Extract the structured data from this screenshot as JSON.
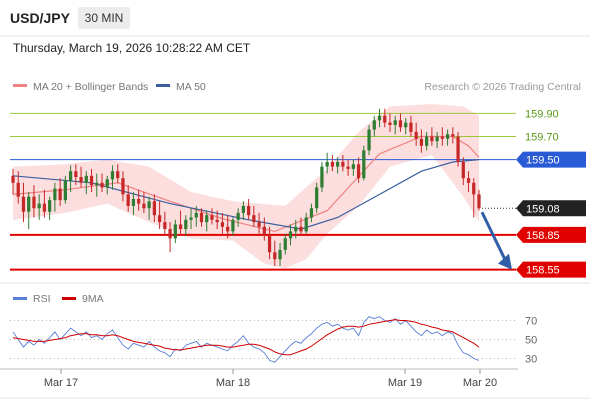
{
  "header": {
    "symbol": "USD/JPY",
    "timeframe": "30 MIN",
    "timestamp": "Thursday, March 19, 2026 10:28:22 AM CET"
  },
  "legend": {
    "ma20": "MA 20 + Bollinger Bands",
    "ma50": "MA 50",
    "rsi": "RSI",
    "rsi_ma": "9MA",
    "credit": "Research © 2026 Trading Central"
  },
  "colors": {
    "bull": "#2e7d32",
    "bear": "#c62828",
    "ma20": "#f08080",
    "ma50": "#3a5f9f",
    "band": "#fbd3d3",
    "support": "#e00000",
    "resistance": "#9bc53d",
    "pivot": "#2a5bd7",
    "arrow": "#2f5da8",
    "rsi": "#5a7fd6",
    "rsi_ma": "#d00000"
  },
  "chart_data": {
    "type": "candlestick",
    "y_range": [
      158.46,
      160.05
    ],
    "x_ticks": [
      "Mar 17",
      "Mar 18",
      "Mar 19",
      "Mar 20"
    ],
    "levels": [
      {
        "value": 159.9,
        "label": "159.90",
        "kind": "resistance"
      },
      {
        "value": 159.7,
        "label": "159.70",
        "kind": "resistance"
      },
      {
        "value": 159.5,
        "label": "159.50",
        "kind": "pivot"
      },
      {
        "value": 158.85,
        "label": "158.85",
        "kind": "support"
      },
      {
        "value": 158.55,
        "label": "158.55",
        "kind": "support"
      }
    ],
    "last_price": {
      "value": 159.08,
      "label": "159.08"
    },
    "projection": {
      "from": 159.08,
      "to": 158.55
    },
    "ohlc": [
      [
        159.36,
        159.42,
        159.2,
        159.3
      ],
      [
        159.3,
        159.4,
        159.12,
        159.18
      ],
      [
        159.18,
        159.3,
        158.96,
        159.05
      ],
      [
        159.05,
        159.22,
        158.9,
        159.18
      ],
      [
        159.18,
        159.28,
        159.0,
        159.08
      ],
      [
        159.08,
        159.2,
        158.98,
        159.12
      ],
      [
        159.12,
        159.24,
        159.0,
        159.05
      ],
      [
        159.05,
        159.18,
        158.98,
        159.15
      ],
      [
        159.15,
        159.3,
        159.05,
        159.25
      ],
      [
        159.25,
        159.34,
        159.1,
        159.15
      ],
      [
        159.15,
        159.36,
        159.12,
        159.32
      ],
      [
        159.32,
        159.45,
        159.22,
        159.4
      ],
      [
        159.4,
        159.46,
        159.28,
        159.35
      ],
      [
        159.35,
        159.44,
        159.26,
        159.3
      ],
      [
        159.3,
        159.4,
        159.2,
        159.36
      ],
      [
        159.36,
        159.42,
        159.22,
        159.28
      ],
      [
        159.28,
        159.38,
        159.18,
        159.3
      ],
      [
        159.3,
        159.38,
        159.22,
        159.26
      ],
      [
        159.26,
        159.36,
        159.2,
        159.33
      ],
      [
        159.33,
        159.45,
        159.24,
        159.4
      ],
      [
        159.4,
        159.46,
        159.3,
        159.34
      ],
      [
        159.34,
        159.4,
        159.14,
        159.2
      ],
      [
        159.2,
        159.28,
        159.05,
        159.1
      ],
      [
        159.1,
        159.22,
        159.02,
        159.16
      ],
      [
        159.16,
        159.24,
        159.06,
        159.12
      ],
      [
        159.12,
        159.22,
        159.04,
        159.08
      ],
      [
        159.08,
        159.18,
        158.98,
        159.14
      ],
      [
        159.14,
        159.2,
        158.96,
        159.02
      ],
      [
        159.02,
        159.14,
        158.9,
        158.96
      ],
      [
        158.96,
        159.05,
        158.84,
        158.9
      ],
      [
        158.9,
        158.96,
        158.7,
        158.82
      ],
      [
        158.82,
        158.98,
        158.78,
        158.94
      ],
      [
        158.94,
        159.06,
        158.86,
        158.9
      ],
      [
        158.9,
        159.02,
        158.84,
        158.98
      ],
      [
        158.98,
        159.08,
        158.9,
        159.0
      ],
      [
        159.0,
        159.1,
        158.92,
        159.04
      ],
      [
        159.04,
        159.08,
        158.92,
        158.96
      ],
      [
        158.96,
        159.06,
        158.88,
        159.02
      ],
      [
        159.02,
        159.08,
        158.94,
        158.98
      ],
      [
        158.98,
        159.06,
        158.9,
        158.96
      ],
      [
        158.96,
        159.04,
        158.86,
        158.92
      ],
      [
        158.92,
        159.02,
        158.82,
        158.88
      ],
      [
        158.88,
        159.0,
        158.84,
        158.98
      ],
      [
        158.98,
        159.08,
        158.92,
        159.04
      ],
      [
        159.04,
        159.14,
        158.98,
        159.1
      ],
      [
        159.1,
        159.16,
        158.98,
        159.02
      ],
      [
        159.02,
        159.1,
        158.92,
        158.96
      ],
      [
        158.96,
        159.04,
        158.86,
        158.92
      ],
      [
        158.92,
        159.0,
        158.8,
        158.84
      ],
      [
        158.84,
        158.92,
        158.64,
        158.7
      ],
      [
        158.7,
        158.8,
        158.58,
        158.64
      ],
      [
        158.64,
        158.78,
        158.58,
        158.72
      ],
      [
        158.72,
        158.86,
        158.68,
        158.82
      ],
      [
        158.82,
        158.94,
        158.76,
        158.88
      ],
      [
        158.88,
        158.98,
        158.82,
        158.92
      ],
      [
        158.92,
        159.0,
        158.84,
        158.88
      ],
      [
        158.88,
        159.04,
        158.86,
        159.0
      ],
      [
        159.0,
        159.12,
        158.96,
        159.08
      ],
      [
        159.08,
        159.3,
        159.04,
        159.26
      ],
      [
        159.26,
        159.48,
        159.22,
        159.44
      ],
      [
        159.44,
        159.56,
        159.38,
        159.48
      ],
      [
        159.48,
        159.54,
        159.4,
        159.44
      ],
      [
        159.44,
        159.52,
        159.38,
        159.48
      ],
      [
        159.48,
        159.54,
        159.4,
        159.44
      ],
      [
        159.44,
        159.5,
        159.36,
        159.42
      ],
      [
        159.42,
        159.5,
        159.36,
        159.46
      ],
      [
        159.46,
        159.52,
        159.3,
        159.34
      ],
      [
        159.34,
        159.62,
        159.32,
        159.58
      ],
      [
        159.58,
        159.8,
        159.54,
        159.76
      ],
      [
        159.76,
        159.88,
        159.7,
        159.84
      ],
      [
        159.84,
        159.94,
        159.78,
        159.88
      ],
      [
        159.88,
        159.94,
        159.78,
        159.82
      ],
      [
        159.82,
        159.9,
        159.74,
        159.8
      ],
      [
        159.8,
        159.88,
        159.72,
        159.84
      ],
      [
        159.84,
        159.9,
        159.74,
        159.78
      ],
      [
        159.78,
        159.86,
        159.72,
        159.82
      ],
      [
        159.82,
        159.88,
        159.7,
        159.74
      ],
      [
        159.74,
        159.82,
        159.62,
        159.68
      ],
      [
        159.68,
        159.76,
        159.56,
        159.62
      ],
      [
        159.62,
        159.74,
        159.58,
        159.7
      ],
      [
        159.7,
        159.78,
        159.62,
        159.66
      ],
      [
        159.66,
        159.74,
        159.6,
        159.7
      ],
      [
        159.7,
        159.78,
        159.62,
        159.68
      ],
      [
        159.68,
        159.76,
        159.62,
        159.72
      ],
      [
        159.72,
        159.78,
        159.64,
        159.7
      ],
      [
        159.7,
        159.74,
        159.44,
        159.48
      ],
      [
        159.48,
        159.52,
        159.28,
        159.34
      ],
      [
        159.34,
        159.4,
        159.22,
        159.3
      ],
      [
        159.3,
        159.34,
        159.0,
        159.2
      ],
      [
        159.2,
        159.24,
        159.06,
        159.08
      ]
    ],
    "ma20": [
      [
        0,
        159.2
      ],
      [
        10,
        159.24
      ],
      [
        20,
        159.3
      ],
      [
        30,
        159.14
      ],
      [
        40,
        158.99
      ],
      [
        50,
        158.88
      ],
      [
        60,
        159.06
      ],
      [
        70,
        159.55
      ],
      [
        78,
        159.7
      ],
      [
        84,
        159.7
      ],
      [
        87,
        159.62
      ],
      [
        89,
        159.52
      ]
    ],
    "bb_upper": [
      [
        0,
        159.44
      ],
      [
        10,
        159.46
      ],
      [
        18,
        159.5
      ],
      [
        26,
        159.44
      ],
      [
        34,
        159.22
      ],
      [
        42,
        159.14
      ],
      [
        52,
        159.1
      ],
      [
        60,
        159.42
      ],
      [
        66,
        159.74
      ],
      [
        72,
        159.96
      ],
      [
        80,
        159.98
      ],
      [
        86,
        159.96
      ],
      [
        89,
        159.88
      ]
    ],
    "bb_lower": [
      [
        0,
        158.98
      ],
      [
        10,
        159.04
      ],
      [
        18,
        159.12
      ],
      [
        26,
        158.96
      ],
      [
        34,
        158.82
      ],
      [
        42,
        158.8
      ],
      [
        48,
        158.6
      ],
      [
        52,
        158.56
      ],
      [
        56,
        158.64
      ],
      [
        60,
        158.86
      ],
      [
        66,
        159.1
      ],
      [
        72,
        159.44
      ],
      [
        80,
        159.54
      ],
      [
        86,
        159.18
      ],
      [
        89,
        158.96
      ]
    ],
    "ma50": [
      [
        0,
        159.36
      ],
      [
        15,
        159.3
      ],
      [
        30,
        159.12
      ],
      [
        45,
        158.98
      ],
      [
        55,
        158.9
      ],
      [
        62,
        159.0
      ],
      [
        70,
        159.2
      ],
      [
        78,
        159.4
      ],
      [
        84,
        159.48
      ],
      [
        89,
        159.5
      ]
    ],
    "rsi": {
      "range": [
        20,
        80
      ],
      "ticks": [
        70,
        50,
        30
      ],
      "values": [
        58,
        50,
        42,
        48,
        44,
        50,
        46,
        52,
        58,
        50,
        56,
        62,
        58,
        54,
        58,
        52,
        54,
        50,
        56,
        60,
        52,
        44,
        40,
        46,
        44,
        42,
        48,
        42,
        38,
        36,
        32,
        40,
        38,
        44,
        46,
        48,
        42,
        46,
        44,
        42,
        40,
        38,
        44,
        48,
        54,
        46,
        42,
        40,
        36,
        28,
        26,
        32,
        38,
        44,
        48,
        46,
        52,
        56,
        62,
        66,
        68,
        64,
        66,
        62,
        60,
        62,
        54,
        68,
        74,
        72,
        74,
        70,
        68,
        72,
        66,
        70,
        64,
        58,
        54,
        60,
        56,
        58,
        54,
        58,
        56,
        44,
        36,
        34,
        30,
        28
      ],
      "ma9": [
        52,
        51,
        50,
        49,
        48,
        48,
        48,
        49,
        50,
        51,
        52,
        54,
        55,
        56,
        56,
        55,
        55,
        54,
        54,
        55,
        54,
        52,
        50,
        48,
        47,
        46,
        45,
        44,
        43,
        41,
        40,
        39,
        39,
        40,
        41,
        42,
        43,
        44,
        44,
        44,
        43,
        42,
        42,
        43,
        44,
        45,
        45,
        44,
        42,
        40,
        37,
        35,
        34,
        34,
        36,
        38,
        40,
        43,
        47,
        51,
        55,
        58,
        61,
        63,
        64,
        64,
        63,
        64,
        66,
        67,
        68,
        69,
        70,
        71,
        70,
        70,
        69,
        68,
        66,
        65,
        63,
        62,
        60,
        59,
        58,
        55,
        52,
        49,
        46,
        42
      ]
    }
  }
}
